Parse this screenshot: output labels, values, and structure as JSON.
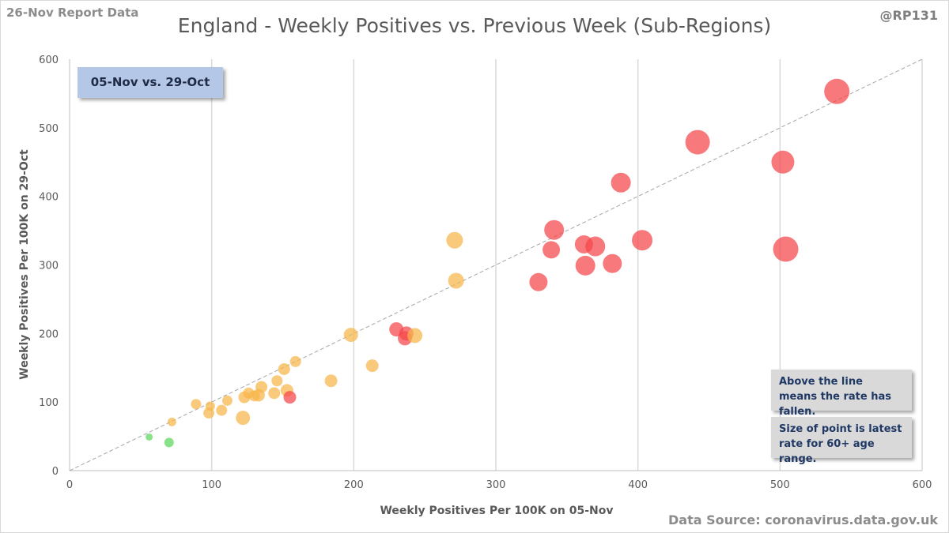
{
  "header": {
    "left_label": "26-Nov Report Data",
    "right_label": "@RP131"
  },
  "footer": {
    "source": "Data Source: coronavirus.data.gov.uk"
  },
  "chart_data": {
    "type": "scatter",
    "title": "England - Weekly Positives vs. Previous Week (Sub-Regions)",
    "xlabel": "Weekly Positives Per 100K on 05-Nov",
    "ylabel": "Weekly Positives Per 100K on 29-Oct",
    "xlim": [
      0,
      600
    ],
    "ylim": [
      0,
      600
    ],
    "xticks": [
      0,
      100,
      200,
      300,
      400,
      500,
      600
    ],
    "yticks": [
      0,
      100,
      200,
      300,
      400,
      500,
      600
    ],
    "grid": "vertical",
    "reference_line": "y = x",
    "annotations": {
      "period": "05-Nov vs. 29-Oct",
      "note_line": "Above the line means the rate has fallen.",
      "note_size": "Size of point is latest rate for 60+ age range."
    },
    "colors": {
      "green": "#5cd65c",
      "amber": "#f7b54a",
      "red": "#f5454a",
      "reference_line": "#a6a6a6",
      "grid": "#d9d9d9"
    },
    "points": [
      {
        "x": 56,
        "y": 49,
        "size": 8,
        "color": "green"
      },
      {
        "x": 70,
        "y": 41,
        "size": 11,
        "color": "green"
      },
      {
        "x": 72,
        "y": 71,
        "size": 10,
        "color": "amber"
      },
      {
        "x": 89,
        "y": 97,
        "size": 12,
        "color": "amber"
      },
      {
        "x": 98,
        "y": 84,
        "size": 13,
        "color": "amber"
      },
      {
        "x": 99,
        "y": 94,
        "size": 11,
        "color": "amber"
      },
      {
        "x": 107,
        "y": 88,
        "size": 13,
        "color": "amber"
      },
      {
        "x": 111,
        "y": 102,
        "size": 12,
        "color": "amber"
      },
      {
        "x": 122,
        "y": 77,
        "size": 17,
        "color": "amber"
      },
      {
        "x": 123,
        "y": 107,
        "size": 14,
        "color": "amber"
      },
      {
        "x": 126,
        "y": 113,
        "size": 13,
        "color": "amber"
      },
      {
        "x": 130,
        "y": 109,
        "size": 13,
        "color": "amber"
      },
      {
        "x": 133,
        "y": 110,
        "size": 15,
        "color": "amber"
      },
      {
        "x": 135,
        "y": 122,
        "size": 14,
        "color": "amber"
      },
      {
        "x": 144,
        "y": 113,
        "size": 14,
        "color": "amber"
      },
      {
        "x": 146,
        "y": 131,
        "size": 13,
        "color": "amber"
      },
      {
        "x": 151,
        "y": 148,
        "size": 14,
        "color": "amber"
      },
      {
        "x": 153,
        "y": 117,
        "size": 15,
        "color": "amber"
      },
      {
        "x": 159,
        "y": 159,
        "size": 13,
        "color": "amber"
      },
      {
        "x": 155,
        "y": 107,
        "size": 15,
        "color": "red"
      },
      {
        "x": 184,
        "y": 131,
        "size": 15,
        "color": "amber"
      },
      {
        "x": 198,
        "y": 198,
        "size": 17,
        "color": "amber"
      },
      {
        "x": 213,
        "y": 153,
        "size": 15,
        "color": "amber"
      },
      {
        "x": 230,
        "y": 206,
        "size": 17,
        "color": "red"
      },
      {
        "x": 236,
        "y": 193,
        "size": 17,
        "color": "red"
      },
      {
        "x": 237,
        "y": 200,
        "size": 17,
        "color": "red"
      },
      {
        "x": 243,
        "y": 197,
        "size": 18,
        "color": "amber"
      },
      {
        "x": 271,
        "y": 336,
        "size": 20,
        "color": "amber"
      },
      {
        "x": 272,
        "y": 277,
        "size": 19,
        "color": "amber"
      },
      {
        "x": 330,
        "y": 275,
        "size": 22,
        "color": "red"
      },
      {
        "x": 339,
        "y": 322,
        "size": 21,
        "color": "red"
      },
      {
        "x": 341,
        "y": 351,
        "size": 24,
        "color": "red"
      },
      {
        "x": 362,
        "y": 330,
        "size": 22,
        "color": "red"
      },
      {
        "x": 363,
        "y": 299,
        "size": 24,
        "color": "red"
      },
      {
        "x": 370,
        "y": 327,
        "size": 24,
        "color": "red"
      },
      {
        "x": 382,
        "y": 302,
        "size": 23,
        "color": "red"
      },
      {
        "x": 388,
        "y": 420,
        "size": 24,
        "color": "red"
      },
      {
        "x": 403,
        "y": 336,
        "size": 25,
        "color": "red"
      },
      {
        "x": 442,
        "y": 479,
        "size": 30,
        "color": "red"
      },
      {
        "x": 502,
        "y": 450,
        "size": 28,
        "color": "red"
      },
      {
        "x": 504,
        "y": 323,
        "size": 31,
        "color": "red"
      },
      {
        "x": 540,
        "y": 553,
        "size": 31,
        "color": "red"
      }
    ]
  }
}
